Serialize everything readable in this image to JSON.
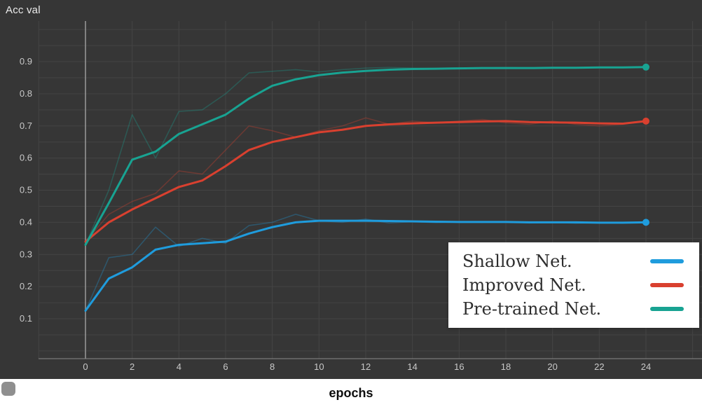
{
  "header": {
    "title": "Acc val"
  },
  "bottom_bar": {
    "xaxis_label": "epochs"
  },
  "chart_data": {
    "type": "line",
    "title": "Acc val",
    "xlabel": "epochs",
    "ylabel": "",
    "xlim": [
      -2,
      26
    ],
    "ylim": [
      0,
      1.0
    ],
    "x_ticks": [
      0,
      2,
      4,
      6,
      8,
      10,
      12,
      14,
      16,
      18,
      20,
      22,
      24
    ],
    "y_ticks": [
      0.1,
      0.2,
      0.3,
      0.4,
      0.5,
      0.6,
      0.7,
      0.8,
      0.9
    ],
    "grid": true,
    "legend_position": "bottom-right",
    "x": [
      0,
      1,
      2,
      3,
      4,
      5,
      6,
      7,
      8,
      9,
      10,
      11,
      12,
      13,
      14,
      15,
      16,
      17,
      18,
      19,
      20,
      21,
      22,
      23,
      24
    ],
    "series": [
      {
        "name": "Shallow Net.",
        "color": "#1f9cdd",
        "smoothed": [
          0.125,
          0.225,
          0.26,
          0.315,
          0.33,
          0.335,
          0.34,
          0.365,
          0.385,
          0.4,
          0.405,
          0.405,
          0.405,
          0.404,
          0.403,
          0.402,
          0.401,
          0.401,
          0.401,
          0.4,
          0.4,
          0.4,
          0.399,
          0.399,
          0.4
        ],
        "raw": [
          0.125,
          0.29,
          0.3,
          0.385,
          0.325,
          0.35,
          0.335,
          0.39,
          0.4,
          0.425,
          0.405,
          0.4,
          0.41,
          0.398,
          0.402,
          0.399,
          0.401,
          0.4,
          0.402,
          0.398,
          0.4,
          0.397,
          0.399,
          0.398,
          0.4
        ]
      },
      {
        "name": "Improved Net.",
        "color": "#d9402f",
        "smoothed": [
          0.34,
          0.4,
          0.44,
          0.475,
          0.51,
          0.53,
          0.575,
          0.625,
          0.65,
          0.665,
          0.68,
          0.688,
          0.7,
          0.705,
          0.708,
          0.71,
          0.712,
          0.714,
          0.715,
          0.712,
          0.711,
          0.71,
          0.708,
          0.707,
          0.715
        ],
        "raw": [
          0.34,
          0.425,
          0.465,
          0.49,
          0.56,
          0.55,
          0.625,
          0.7,
          0.685,
          0.665,
          0.685,
          0.7,
          0.725,
          0.705,
          0.715,
          0.71,
          0.715,
          0.72,
          0.71,
          0.705,
          0.715,
          0.705,
          0.7,
          0.705,
          0.715
        ]
      },
      {
        "name": "Pre-trained Net.",
        "color": "#18a392",
        "smoothed": [
          0.33,
          0.46,
          0.595,
          0.62,
          0.675,
          0.705,
          0.735,
          0.785,
          0.825,
          0.845,
          0.858,
          0.866,
          0.871,
          0.875,
          0.877,
          0.878,
          0.879,
          0.88,
          0.88,
          0.88,
          0.881,
          0.881,
          0.882,
          0.882,
          0.883
        ],
        "raw": [
          0.33,
          0.5,
          0.735,
          0.6,
          0.745,
          0.75,
          0.8,
          0.865,
          0.87,
          0.875,
          0.868,
          0.875,
          0.88,
          0.882,
          0.88,
          0.879,
          0.881,
          0.88,
          0.882,
          0.88,
          0.882,
          0.881,
          0.883,
          0.882,
          0.883
        ]
      }
    ]
  }
}
